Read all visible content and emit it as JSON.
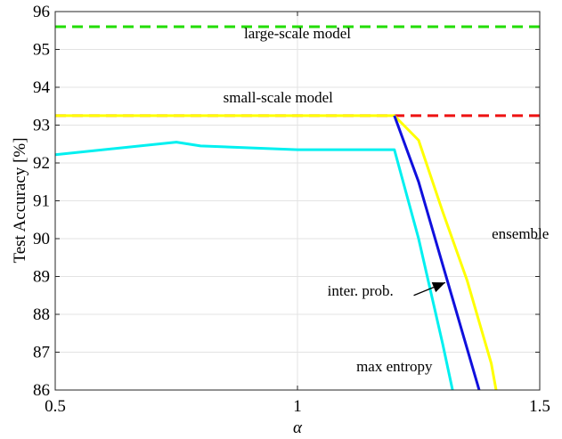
{
  "chart_data": {
    "type": "line",
    "xlabel": "α",
    "ylabel": "Test Accuracy [%]",
    "xlim": [
      0.5,
      1.5
    ],
    "ylim": [
      86,
      96
    ],
    "x_ticks": [
      0.5,
      1,
      1.5
    ],
    "y_ticks": [
      86,
      87,
      88,
      89,
      90,
      91,
      92,
      93,
      94,
      95,
      96
    ],
    "grid": true,
    "series": [
      {
        "name": "large-scale model",
        "color": "#22dd00",
        "style": "dashed",
        "x": [
          0.5,
          1.5
        ],
        "y": [
          95.6,
          95.6
        ]
      },
      {
        "name": "small-scale model",
        "color": "#ee1111",
        "style": "dashed",
        "x": [
          0.5,
          1.5
        ],
        "y": [
          93.25,
          93.25
        ]
      },
      {
        "name": "ensemble",
        "color": "#ffff00",
        "style": "solid",
        "x": [
          0.5,
          1.2,
          1.25,
          1.3,
          1.35,
          1.4,
          1.41
        ],
        "y": [
          93.25,
          93.25,
          92.6,
          90.7,
          88.9,
          86.7,
          86.0
        ]
      },
      {
        "name": "inter. prob.",
        "color": "#1010dd",
        "style": "solid",
        "x": [
          1.2,
          1.25,
          1.3,
          1.35,
          1.375
        ],
        "y": [
          93.25,
          91.5,
          89.3,
          87.1,
          86.0
        ]
      },
      {
        "name": "max entropy",
        "color": "#00f0f0",
        "style": "solid",
        "x": [
          0.5,
          0.75,
          0.8,
          0.9,
          1.0,
          1.1,
          1.2,
          1.25,
          1.3,
          1.32
        ],
        "y": [
          92.22,
          92.55,
          92.45,
          92.4,
          92.35,
          92.35,
          92.35,
          90.0,
          87.2,
          86.0
        ]
      }
    ],
    "annotations": [
      {
        "text": "large-scale model",
        "x": 1.0,
        "y": 95.3
      },
      {
        "text": "small-scale model",
        "x": 0.96,
        "y": 93.6
      },
      {
        "text": "ensemble",
        "x": 1.46,
        "y": 90.0
      },
      {
        "text": "inter. prob.",
        "x": 1.13,
        "y": 88.5
      },
      {
        "text": "max entropy",
        "x": 1.2,
        "y": 86.5
      }
    ],
    "arrow": {
      "from": [
        1.24,
        88.5
      ],
      "to": [
        1.305,
        88.84
      ]
    }
  }
}
